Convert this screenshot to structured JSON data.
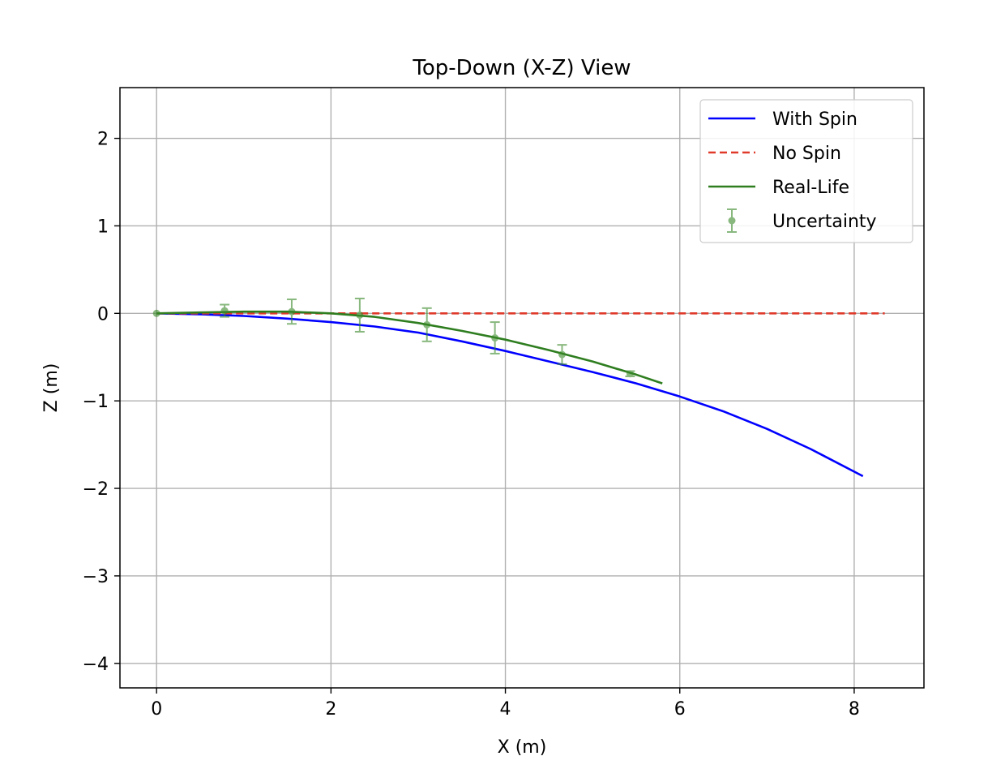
{
  "chart_data": {
    "type": "line",
    "title": "Top-Down (X-Z) View",
    "xlabel": "X (m)",
    "ylabel": "Z (m)",
    "xlim": [
      -0.42,
      8.8
    ],
    "ylim": [
      -4.28,
      2.58
    ],
    "xticks": [
      0,
      2,
      4,
      6,
      8
    ],
    "yticks": [
      2,
      1,
      0,
      -1,
      -2,
      -3,
      -4
    ],
    "xtick_labels": [
      "0",
      "2",
      "4",
      "6",
      "8"
    ],
    "ytick_labels": [
      "2",
      "1",
      "0",
      "−1",
      "−2",
      "−3",
      "−4"
    ],
    "grid": true,
    "legend_position": "top-right",
    "series": [
      {
        "name": "With Spin",
        "style": "solid",
        "color": "#0000ff",
        "x": [
          0,
          0.5,
          1,
          1.5,
          2,
          2.5,
          3,
          3.5,
          4,
          4.5,
          5,
          5.5,
          6,
          6.5,
          7,
          7.5,
          8.1
        ],
        "y": [
          0,
          -0.01,
          -0.03,
          -0.06,
          -0.1,
          -0.15,
          -0.22,
          -0.32,
          -0.43,
          -0.55,
          -0.67,
          -0.8,
          -0.95,
          -1.12,
          -1.32,
          -1.55,
          -1.86
        ]
      },
      {
        "name": "No Spin",
        "style": "dashed",
        "color": "#e03a2b",
        "x": [
          0,
          8.35
        ],
        "y": [
          0,
          0
        ]
      },
      {
        "name": "Real-Life",
        "style": "solid",
        "color": "#2e7d1f",
        "x": [
          0,
          0.5,
          1,
          1.5,
          2,
          2.5,
          3,
          3.5,
          4,
          4.5,
          5,
          5.5,
          5.8
        ],
        "y": [
          0,
          0.01,
          0.02,
          0.02,
          0,
          -0.04,
          -0.11,
          -0.2,
          -0.3,
          -0.42,
          -0.55,
          -0.7,
          -0.8
        ]
      }
    ],
    "errorbars": {
      "name": "Uncertainty",
      "color": "#3a8a2a",
      "x": [
        0,
        0.78,
        1.55,
        2.33,
        3.1,
        3.88,
        4.65,
        5.43
      ],
      "y": [
        0,
        0.03,
        0.02,
        -0.02,
        -0.13,
        -0.28,
        -0.47,
        -0.69
      ],
      "err": [
        0,
        0.07,
        0.14,
        0.19,
        0.19,
        0.18,
        0.11,
        0.03
      ]
    }
  }
}
